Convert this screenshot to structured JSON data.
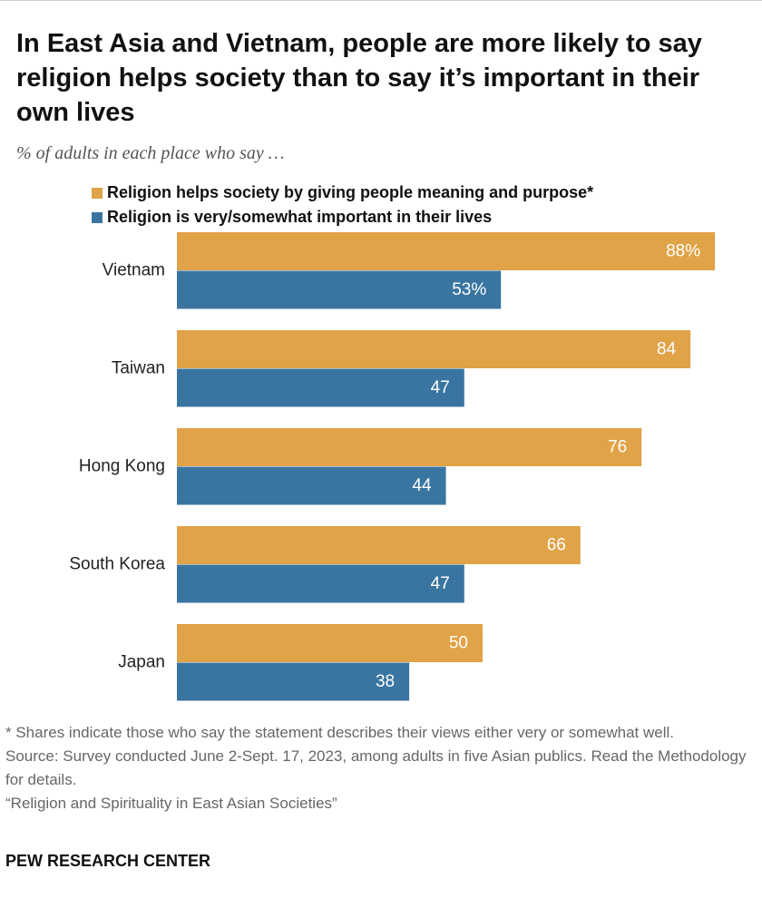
{
  "chart_data": {
    "type": "bar",
    "orientation": "horizontal",
    "title": "In East Asia and Vietnam, people are more likely to say religion helps society than to say it’s important in their own lives",
    "subtitle": "% of adults in each place who say …",
    "categories": [
      "Vietnam",
      "Taiwan",
      "Hong Kong",
      "South Korea",
      "Japan"
    ],
    "series": [
      {
        "name": "Religion helps society by giving people meaning and purpose*",
        "color": "#e0a347",
        "values": [
          88,
          84,
          76,
          66,
          50
        ],
        "value_labels": [
          "88%",
          "84",
          "76",
          "66",
          "50"
        ]
      },
      {
        "name": "Religion is very/somewhat important in their lives",
        "color": "#3a75a1",
        "values": [
          53,
          47,
          44,
          47,
          38
        ],
        "value_labels": [
          "53%",
          "47",
          "44",
          "47",
          "38"
        ]
      }
    ],
    "footnote": "* Shares indicate those who say the statement describes their views either very or somewhat well.",
    "source": "Source: Survey conducted June 2-Sept. 17, 2023, among adults in five Asian publics. Read the Methodology for details.",
    "report": "“Religion and Spirituality in East Asian Societies”",
    "credit": "PEW RESEARCH CENTER"
  }
}
